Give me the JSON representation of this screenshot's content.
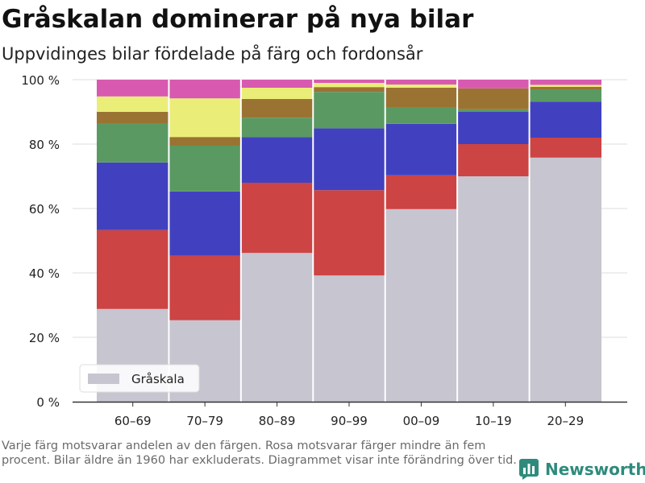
{
  "title": "Gråskalan dominerar på nya bilar",
  "subtitle": "Uppvidinges bilar fördelade på färg och fordonsår",
  "footnote": "Varje färg motsvarar andelen av den färgen. Rosa motsvarar färger mindre än fem procent. Bilar äldre än 1960 har exkluderats. Diagrammet visar inte förändring över tid.",
  "brand": {
    "name": "Newsworthy",
    "icon": "bar-chart-logo-icon",
    "color": "#2e8b7c"
  },
  "chart_data": {
    "type": "bar",
    "stacked": true,
    "categories": [
      "60–69",
      "70–79",
      "80–89",
      "90–99",
      "00–09",
      "10–19",
      "20–29"
    ],
    "y_ticks": [
      "0 %",
      "20 %",
      "40 %",
      "60 %",
      "80 %",
      "100 %"
    ],
    "ylim": [
      0,
      100
    ],
    "grid": true,
    "legend": {
      "position": "bottom-left",
      "entries": [
        {
          "label": "Gråskala",
          "color": "#c6c5d0"
        }
      ]
    },
    "series": [
      {
        "color": "#c6c5d0",
        "values": [
          28.8,
          25.3,
          46.2,
          39.2,
          59.8,
          70.0,
          75.8
        ]
      },
      {
        "color": "#cc4444",
        "values": [
          24.5,
          20.0,
          21.8,
          26.5,
          10.5,
          10.0,
          6.2
        ]
      },
      {
        "color": "#4141c0",
        "values": [
          21.0,
          20.0,
          14.2,
          19.2,
          16.0,
          10.0,
          11.2
        ]
      },
      {
        "color": "#5a9a62",
        "values": [
          12.2,
          14.2,
          6.0,
          11.3,
          5.2,
          0.8,
          3.8
        ]
      },
      {
        "color": "#9a7333",
        "values": [
          3.5,
          2.7,
          5.8,
          1.5,
          6.0,
          6.5,
          0.8
        ]
      },
      {
        "color": "#eaee78",
        "values": [
          4.8,
          12.0,
          3.5,
          1.3,
          1.0,
          0,
          0.6
        ]
      },
      {
        "color": "#d85ab0",
        "values": [
          5.2,
          5.8,
          2.5,
          1.0,
          1.5,
          2.7,
          1.6
        ]
      }
    ]
  }
}
